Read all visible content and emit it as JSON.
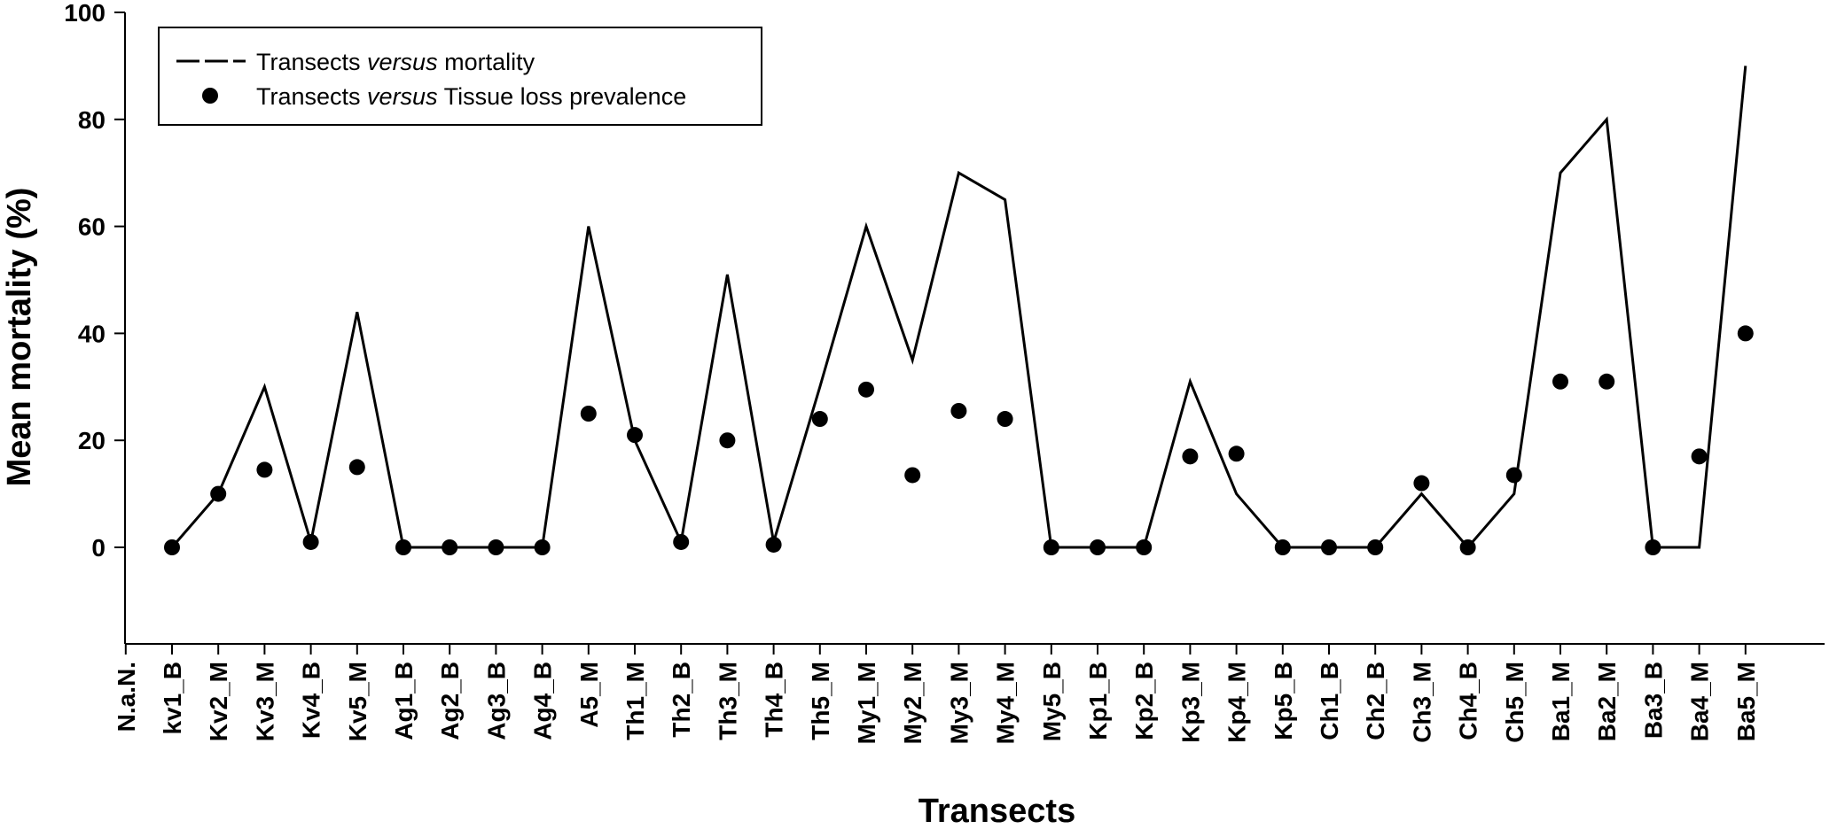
{
  "chart_data": {
    "type": "line",
    "title": "",
    "xlabel": "Transects",
    "ylabel": "Mean mortality (%)",
    "ylim": [
      -18,
      100
    ],
    "yticks": [
      0,
      20,
      40,
      60,
      80,
      100
    ],
    "grid": false,
    "legend_position": "top-left",
    "categories": [
      "N.a.N.",
      "kv1_B",
      "Kv2_M",
      "Kv3_M",
      "Kv4_B",
      "Kv5_M",
      "Ag1_B",
      "Ag2_B",
      "Ag3_B",
      "Ag4_B",
      "A5_M",
      "Th1_M",
      "Th2_B",
      "Th3_M",
      "Th4_B",
      "Th5_M",
      "My1_M",
      "My2_M",
      "My3_M",
      "My4_M",
      "My5_B",
      "Kp1_B",
      "Kp2_B",
      "Kp3_M",
      "Kp4_M",
      "Kp5_B",
      "Ch1_B",
      "Ch2_B",
      "Ch3_M",
      "Ch4_B",
      "Ch5_M",
      "Ba1_M",
      "Ba2_M",
      "Ba3_B",
      "Ba4_M",
      "Ba5_M"
    ],
    "series": [
      {
        "name": "Transects versus mortality",
        "name_parts": [
          "Transects ",
          "versus",
          " mortality"
        ],
        "type": "line",
        "color": "#000000",
        "values": [
          null,
          0,
          10,
          30,
          1,
          44,
          0,
          0,
          0,
          0,
          60,
          20,
          1,
          51,
          1,
          30,
          60,
          35,
          70,
          65,
          0,
          0,
          0,
          31,
          10,
          0,
          0,
          0,
          10,
          0,
          10,
          70,
          80,
          0,
          0,
          90
        ]
      },
      {
        "name": "Transects versus Tissue loss prevalence",
        "name_parts": [
          "Transects ",
          "versus",
          " Tissue loss prevalence"
        ],
        "type": "scatter",
        "color": "#000000",
        "values": [
          null,
          0,
          10,
          14.5,
          1,
          15,
          0,
          0,
          0,
          0,
          25,
          21,
          1,
          20,
          0.5,
          24,
          29.5,
          13.5,
          25.5,
          24,
          0,
          0,
          0,
          17,
          17.5,
          0,
          0,
          0,
          12,
          0,
          13.5,
          31,
          31,
          0,
          17,
          40
        ]
      }
    ]
  }
}
